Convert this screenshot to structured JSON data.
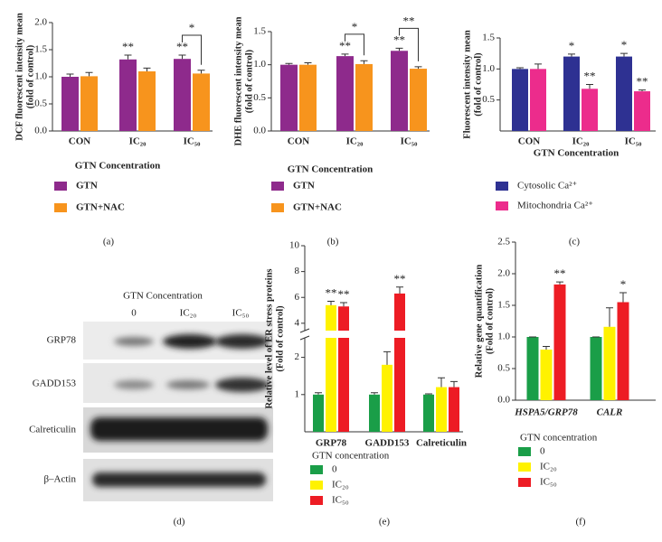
{
  "chart_data": [
    {
      "type": "bar",
      "panel": "(a)",
      "ylabel": [
        "DCF fluorescent intensity mean",
        "(fold of control)"
      ],
      "xlabel": "GTN Concentration",
      "categories": [
        "CON",
        "IC₂₀",
        "IC₅₀"
      ],
      "series": [
        {
          "name": "GTN",
          "color": "#8e2a8c",
          "values": [
            1.0,
            1.32,
            1.33
          ],
          "errors": [
            0.05,
            0.08,
            0.07
          ],
          "significance": [
            null,
            "**",
            "**"
          ]
        },
        {
          "name": "GTN+NAC",
          "color": "#f7941d",
          "values": [
            1.01,
            1.1,
            1.06
          ],
          "errors": [
            0.07,
            0.06,
            0.06
          ]
        }
      ],
      "brackets": [
        null,
        null,
        "*"
      ],
      "ylim": [
        0,
        2
      ],
      "yticks": [
        {
          "value": 0,
          "label": "0.0"
        },
        0.5,
        {
          "value": 1,
          "label": "1.0"
        },
        1.5,
        {
          "value": 2,
          "label": "2.0"
        }
      ]
    },
    {
      "type": "bar",
      "panel": "(b)",
      "ylabel": [
        "DHE fluorescent intensity mean",
        "(fold of control)"
      ],
      "xlabel": "GTN Concentration",
      "categories": [
        "CON",
        "IC₂₀",
        "IC₅₀"
      ],
      "series": [
        {
          "name": "GTN",
          "color": "#8e2a8c",
          "values": [
            1.0,
            1.13,
            1.21
          ],
          "errors": [
            0.02,
            0.03,
            0.04
          ],
          "significance": [
            null,
            "**",
            "**"
          ]
        },
        {
          "name": "GTN+NAC",
          "color": "#f7941d",
          "values": [
            1.0,
            1.01,
            0.94
          ],
          "errors": [
            0.03,
            0.05,
            0.03
          ]
        }
      ],
      "brackets": [
        null,
        "*",
        "**"
      ],
      "ylim": [
        0,
        1.5
      ],
      "yticks": [
        {
          "value": 0,
          "label": "0.0"
        },
        0.5,
        {
          "value": 1,
          "label": "1.0"
        },
        1.5
      ]
    },
    {
      "type": "bar",
      "panel": "(c)",
      "ylabel": [
        "Fluorescent intensity mean",
        "(fold of control)"
      ],
      "xlabel": "GTN Concentration",
      "categories": [
        "CON",
        "IC₂₀",
        "IC₅₀"
      ],
      "series": [
        {
          "name": "Cytosolic Ca²⁺",
          "color": "#2e3192",
          "values": [
            1.0,
            1.2,
            1.2
          ],
          "errors": [
            0.02,
            0.04,
            0.05
          ],
          "significance": [
            null,
            "*",
            "*"
          ]
        },
        {
          "name": "Mitochondria Ca²⁺",
          "color": "#ec2c8c",
          "values": [
            1.0,
            0.68,
            0.64
          ],
          "errors": [
            0.08,
            0.07,
            0.02
          ],
          "significance": [
            null,
            "**",
            "**"
          ]
        }
      ],
      "ylim": [
        0,
        1.5
      ],
      "yticks": [
        0.5,
        {
          "value": 1,
          "label": "1.0"
        },
        1.5
      ]
    },
    {
      "type": "bar",
      "panel": "(e)",
      "ylabel": [
        "Relative level of ER stress proteins",
        "(Fold of control)"
      ],
      "categories": [
        "GRP78",
        "GADD153",
        "Calreticulin"
      ],
      "legend_title": "GTN concentration",
      "series": [
        {
          "name": "0",
          "color": "#1a9e48",
          "values": [
            1.0,
            1.0,
            1.0
          ],
          "errors": [
            0.05,
            0.05,
            0.02
          ]
        },
        {
          "name": "IC₂₀",
          "color": "#fff200",
          "values": [
            5.4,
            1.8,
            1.2
          ],
          "errors": [
            0.3,
            0.35,
            0.25
          ],
          "significance": [
            "**",
            null,
            null
          ]
        },
        {
          "name": "IC₅₀",
          "color": "#ed1c24",
          "values": [
            5.3,
            6.3,
            1.2
          ],
          "errors": [
            0.3,
            0.5,
            0.15
          ],
          "significance": [
            "**",
            "**",
            null
          ]
        }
      ],
      "ylim": [
        0,
        10
      ],
      "ybreak": [
        2.5,
        3.5
      ],
      "yticks": [
        1,
        2,
        4,
        6,
        8,
        10
      ]
    },
    {
      "type": "bar",
      "panel": "(f)",
      "ylabel": [
        "Relative gene quantification",
        "(Fold of control)"
      ],
      "categories": [
        "HSPA5/GRP78",
        "CALR"
      ],
      "legend_title": "GTN concentration",
      "series": [
        {
          "name": "0",
          "color": "#1a9e48",
          "values": [
            1.0,
            1.0
          ],
          "errors": [
            0,
            0
          ]
        },
        {
          "name": "IC₂₀",
          "color": "#fff200",
          "values": [
            0.8,
            1.16
          ],
          "errors": [
            0.05,
            0.3
          ]
        },
        {
          "name": "IC₅₀",
          "color": "#ed1c24",
          "values": [
            1.83,
            1.55
          ],
          "errors": [
            0.04,
            0.15
          ],
          "significance": [
            "**",
            "*"
          ]
        }
      ],
      "ylim": [
        0,
        2.5
      ],
      "yticks": [
        {
          "value": 0,
          "label": "0.0"
        },
        0.5,
        {
          "value": 1,
          "label": "1.0"
        },
        1.5,
        {
          "value": 2,
          "label": "2.0"
        },
        2.5
      ]
    }
  ],
  "blot": {
    "panel": "(d)",
    "title": "GTN Concentration",
    "lanes": [
      "0",
      "IC₂₀",
      "IC₅₀"
    ],
    "rows": [
      "GRP78",
      "GADD153",
      "Calreticulin",
      "β–Actin"
    ]
  }
}
